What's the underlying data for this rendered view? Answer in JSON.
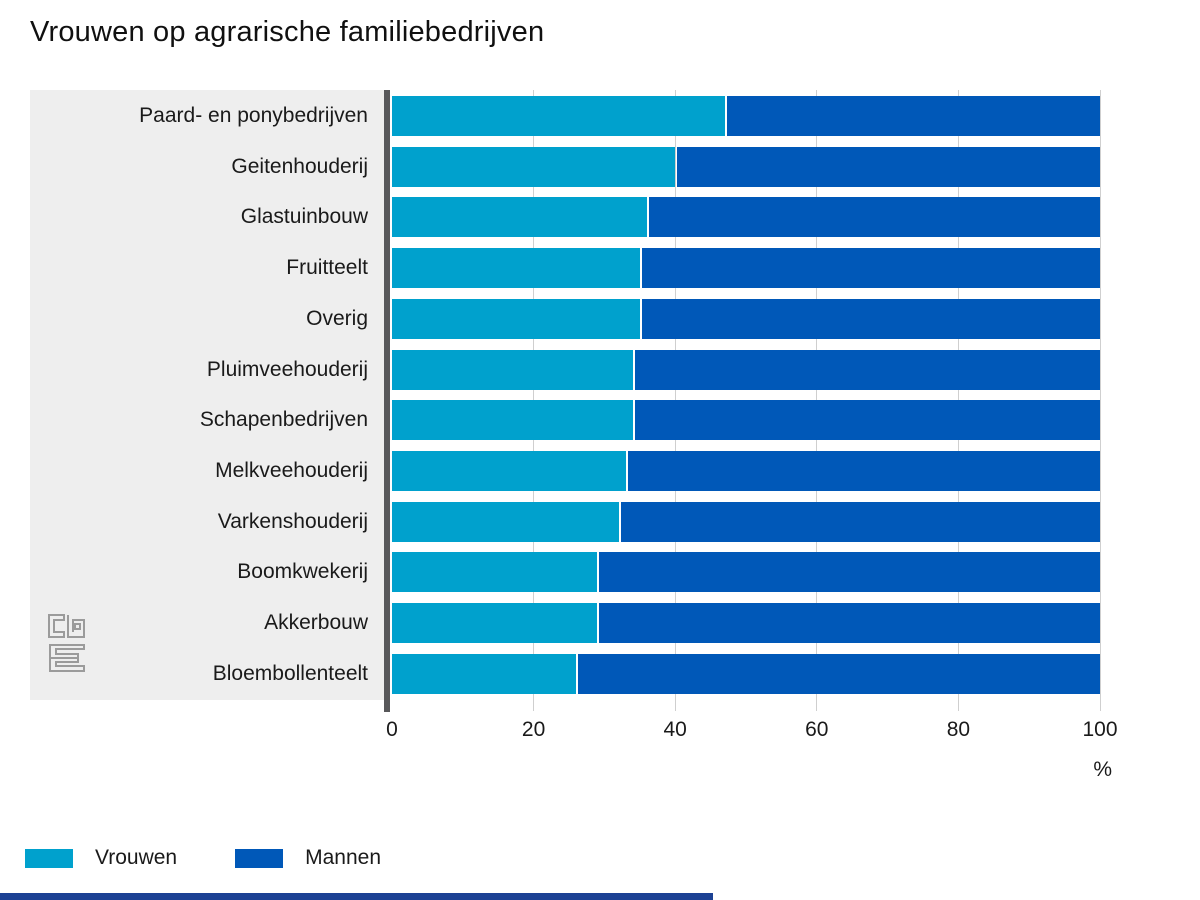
{
  "title": "Vrouwen op agrarische familiebedrijven",
  "chart_data": {
    "type": "bar",
    "orientation": "horizontal",
    "stacked": true,
    "title": "Vrouwen op agrarische familiebedrijven",
    "categories": [
      "Paard- en ponybedrijven",
      "Geitenhouderij",
      "Glastuinbouw",
      "Fruitteelt",
      "Overig",
      "Pluimveehouderij",
      "Schapenbedrijven",
      "Melkveehouderij",
      "Varkenshouderij",
      "Boomkwekerij",
      "Akkerbouw",
      "Bloembollenteelt"
    ],
    "series": [
      {
        "name": "Vrouwen",
        "color": "#00a1cd",
        "values": [
          47,
          40,
          36,
          35,
          35,
          34,
          34,
          33,
          32,
          29,
          29,
          26
        ]
      },
      {
        "name": "Mannen",
        "color": "#0058b8",
        "values": [
          53,
          60,
          64,
          65,
          65,
          66,
          66,
          67,
          68,
          71,
          71,
          74
        ]
      }
    ],
    "xlim": [
      0,
      100
    ],
    "x_ticks": [
      0,
      20,
      40,
      60,
      80,
      100
    ],
    "xlabel": "%",
    "grid": true,
    "legend_position": "bottom"
  },
  "legend": {
    "items": [
      {
        "label": "Vrouwen",
        "color": "#00a1cd"
      },
      {
        "label": "Mannen",
        "color": "#0058b8"
      }
    ]
  },
  "logo": {
    "name": "cbs-logo",
    "color": "#9b9b9b"
  },
  "colors": {
    "vrouwen": "#00a1cd",
    "mannen": "#0058b8",
    "panel_bg": "#eeeeee",
    "axis_line": "#58585a",
    "gridline": "#cfcfcf",
    "text": "#1a1a1a",
    "footer_bar": "#1c4194"
  }
}
